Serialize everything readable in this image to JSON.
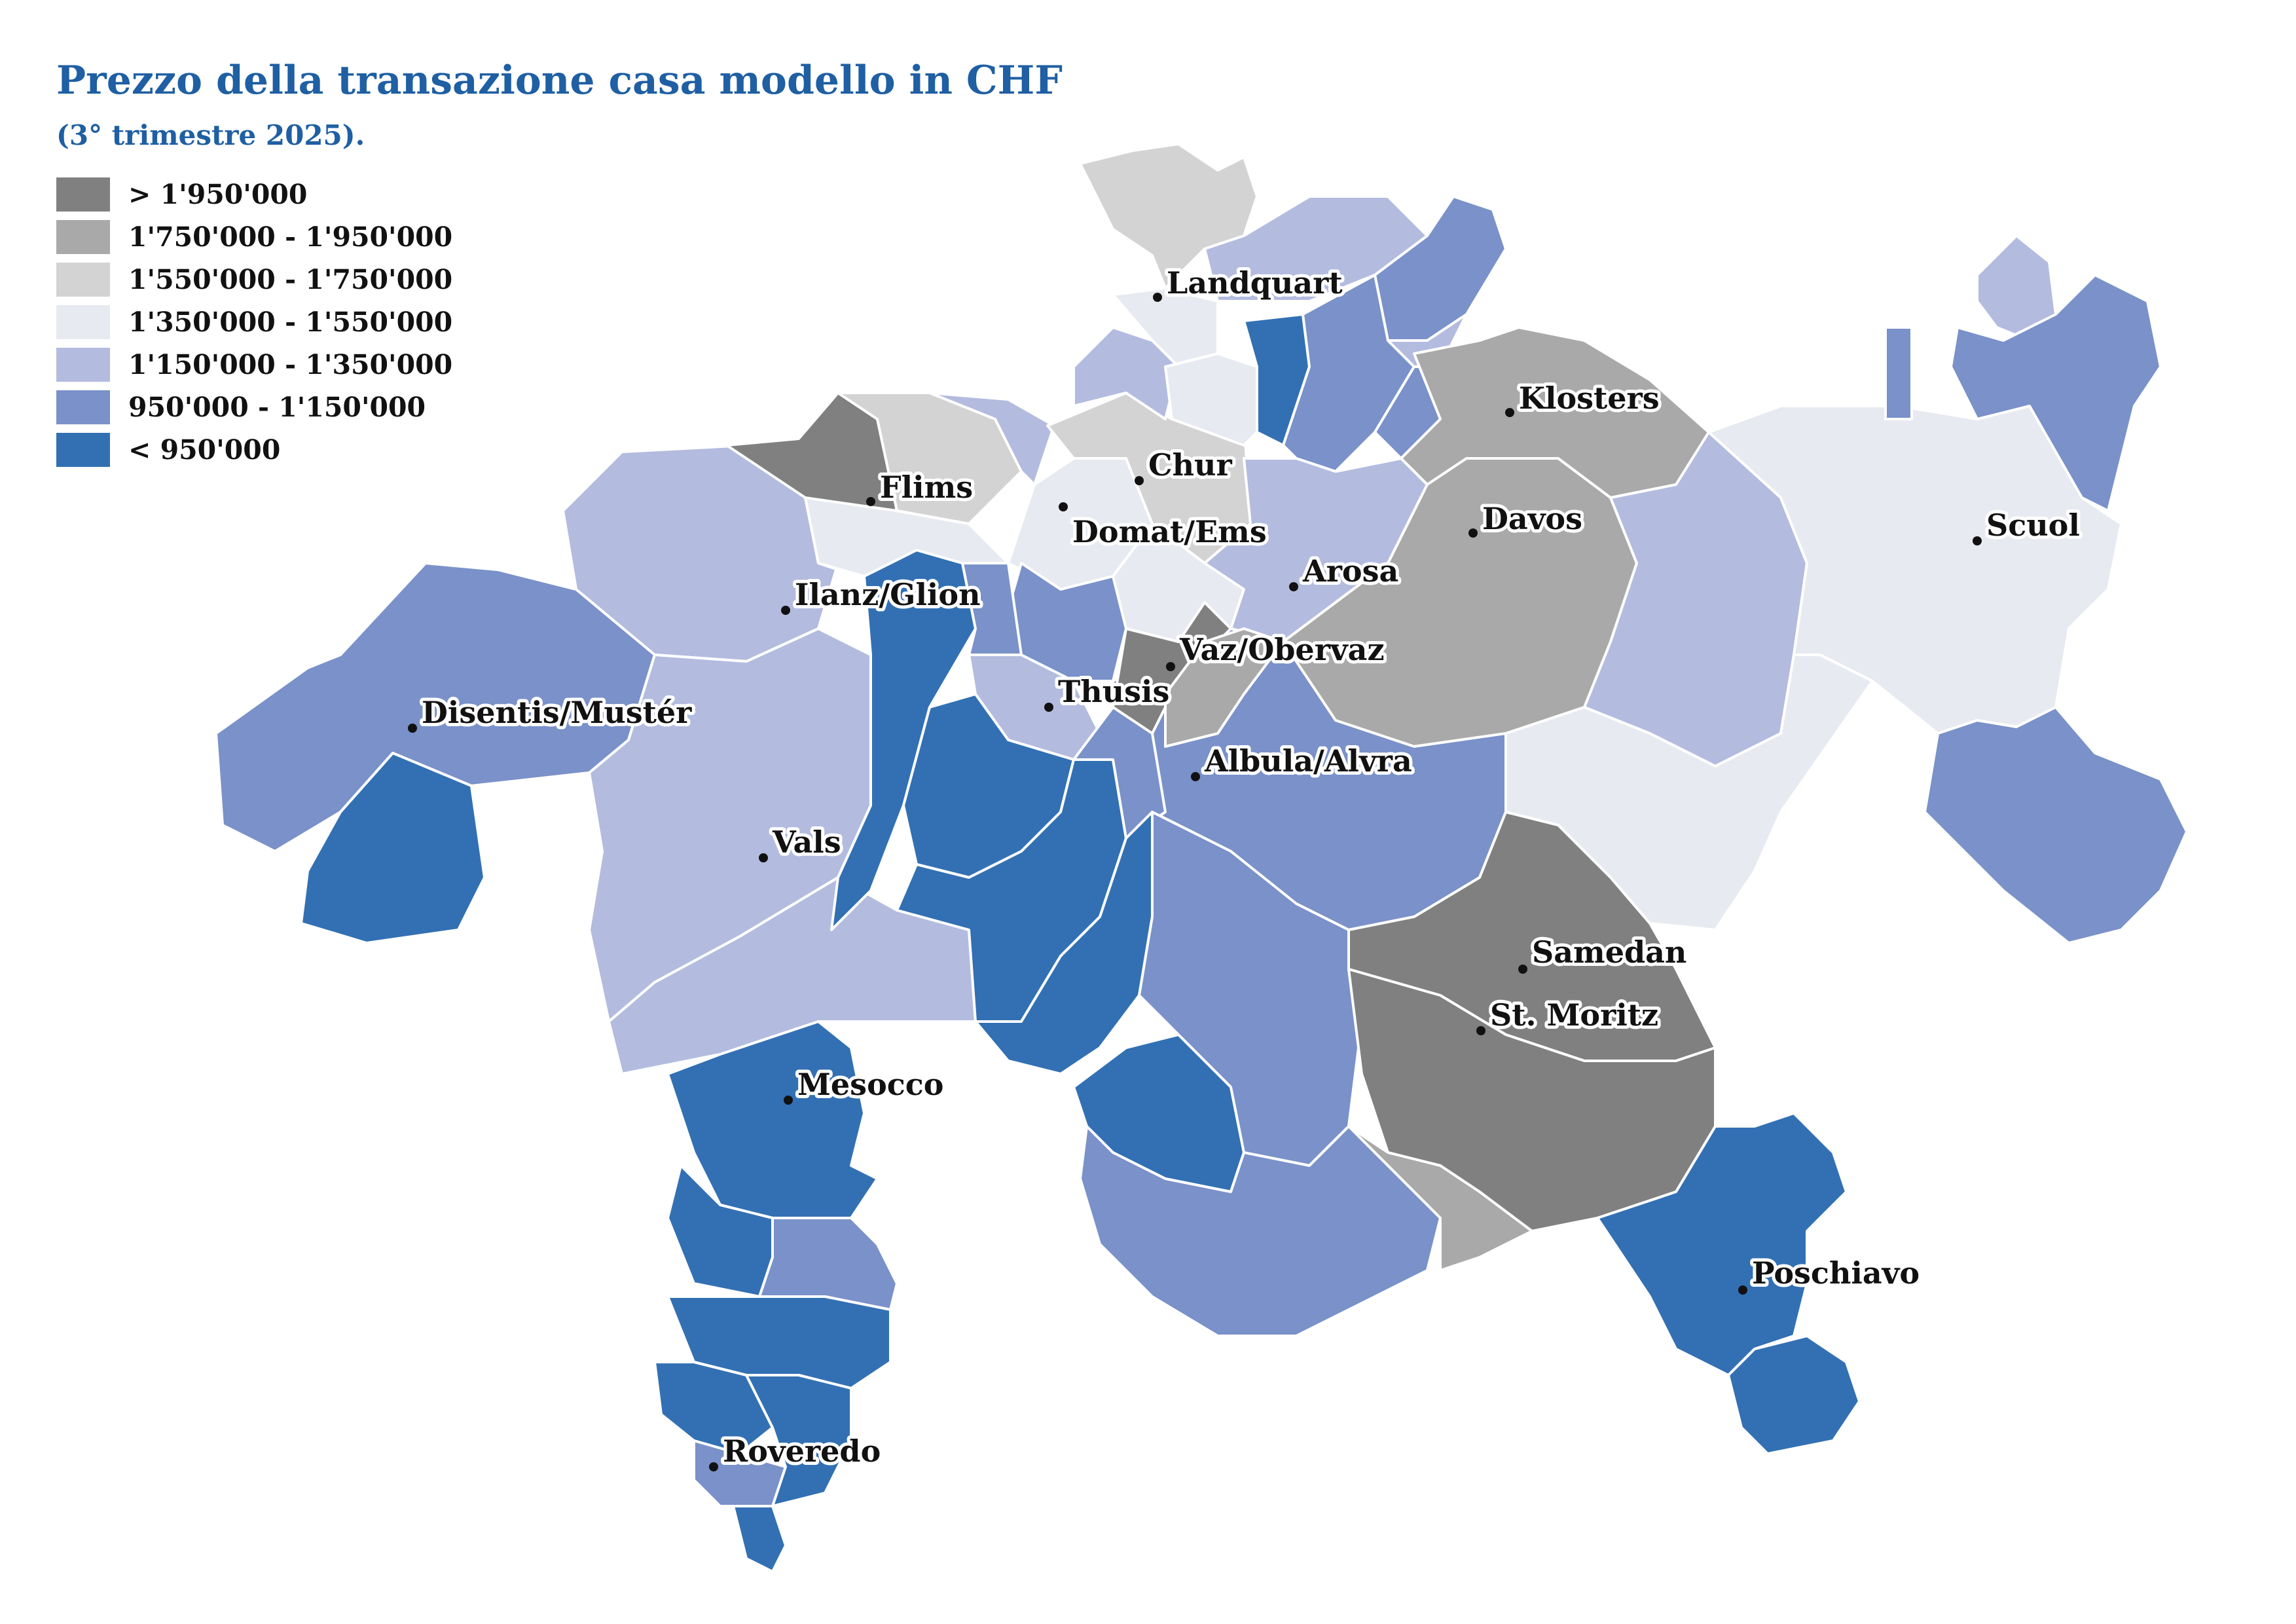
{
  "title": "Prezzo della transazione casa modello in CHF",
  "subtitle": "(3° trimestre 2025).",
  "legend": [
    {
      "label": "> 1'950'000",
      "color": "#808080"
    },
    {
      "label": "1'750'000 - 1'950'000",
      "color": "#a9a9a9"
    },
    {
      "label": "1'550'000 - 1'750'000",
      "color": "#d3d3d3"
    },
    {
      "label": "1'350'000 - 1'550'000",
      "color": "#e8eaf1"
    },
    {
      "label": "1'150'000 - 1'350'000",
      "color": "#b3bcdf"
    },
    {
      "label": "950'000 - 1'150'000",
      "color": "#7a91c9"
    },
    {
      "label": "< 950'000",
      "color": "#3270b3"
    }
  ],
  "places": [
    {
      "name": "Landquart"
    },
    {
      "name": "Klosters"
    },
    {
      "name": "Chur"
    },
    {
      "name": "Flims"
    },
    {
      "name": "Domat/Ems"
    },
    {
      "name": "Davos"
    },
    {
      "name": "Scuol"
    },
    {
      "name": "Ilanz/Glion"
    },
    {
      "name": "Arosa"
    },
    {
      "name": "Vaz/Obervaz"
    },
    {
      "name": "Thusis"
    },
    {
      "name": "Disentis/Mustér"
    },
    {
      "name": "Albula/Alvra"
    },
    {
      "name": "Vals"
    },
    {
      "name": "Samedan"
    },
    {
      "name": "St. Moritz"
    },
    {
      "name": "Mesocco"
    },
    {
      "name": "Poschiavo"
    },
    {
      "name": "Roveredo"
    }
  ]
}
